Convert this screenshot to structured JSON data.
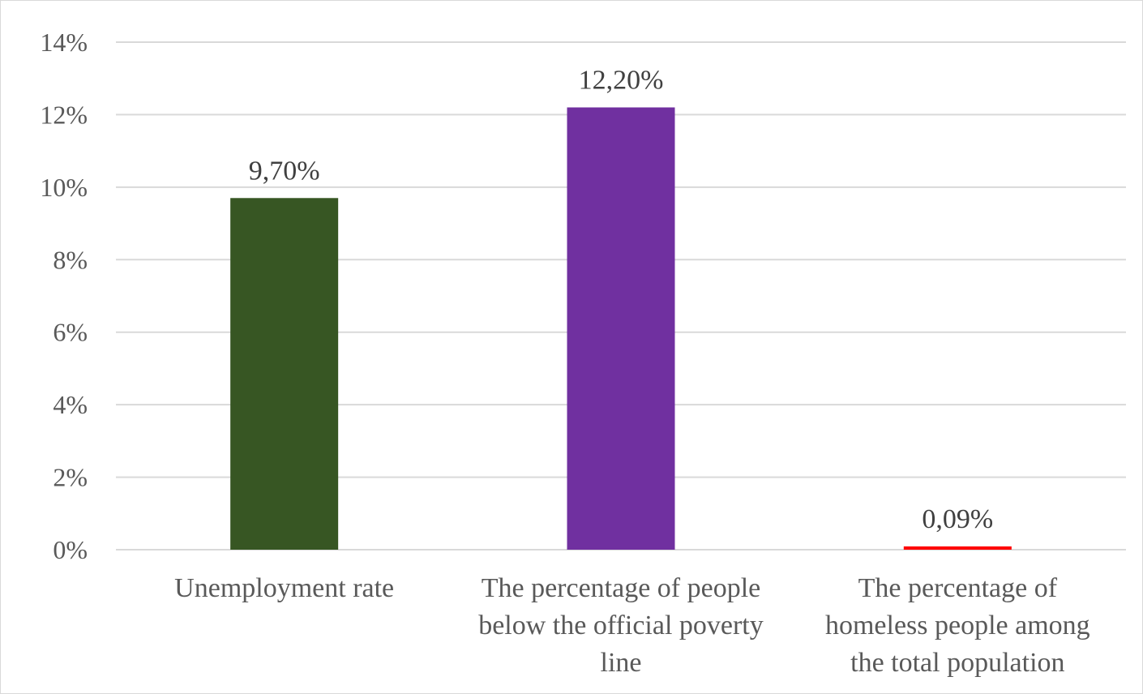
{
  "chart_data": {
    "type": "bar",
    "categories": [
      [
        "Unemployment rate"
      ],
      [
        "The percentage of people",
        "below the official poverty",
        "line"
      ],
      [
        "The percentage of",
        "homeless people among",
        "the total population"
      ]
    ],
    "values": [
      9.7,
      12.2,
      0.09
    ],
    "data_labels": [
      "9,70%",
      "12,20%",
      "0,09%"
    ],
    "colors": [
      "#375623",
      "#7030a0",
      "#ff0000"
    ],
    "ylim": [
      0,
      14
    ],
    "y_ticks": [
      0,
      2,
      4,
      6,
      8,
      10,
      12,
      14
    ],
    "y_tick_labels": [
      "0%",
      "2%",
      "4%",
      "6%",
      "8%",
      "10%",
      "12%",
      "14%"
    ],
    "grid": true,
    "gridline_color": "#d9d9d9",
    "title": "",
    "xlabel": "",
    "ylabel": ""
  }
}
